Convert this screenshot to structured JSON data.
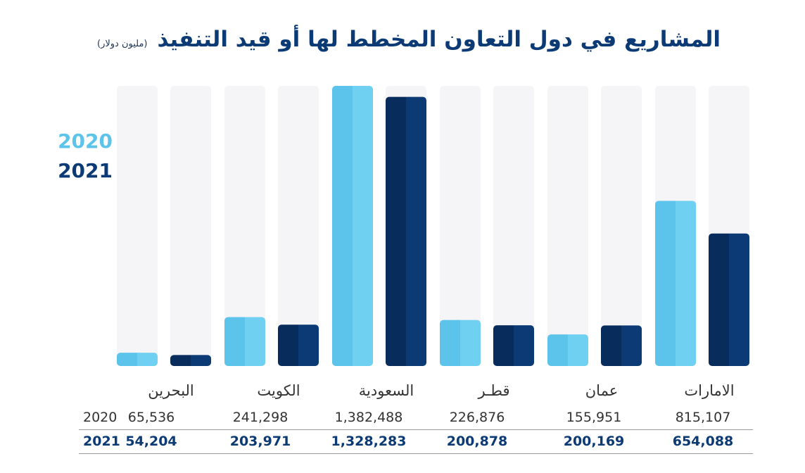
{
  "title": "المشاريع في دول التعاون المخطط لها أو قيد التنفيذ",
  "subtitle": "(مليون دولار)",
  "legend": [
    "2020",
    "2021"
  ],
  "colors": {
    "series_2020": "#6fd0f2",
    "series_2021": "#0b3a74",
    "track": "#f5f5f7"
  },
  "chart_data": {
    "type": "bar",
    "title": "المشاريع في دول التعاون المخطط لها أو قيد التنفيذ",
    "subtitle": "(مليون دولار)",
    "categories": [
      "البحرين",
      "الكويت",
      "السعودية",
      "قطـر",
      "عمان",
      "الامارات"
    ],
    "series": [
      {
        "name": "2020",
        "values": [
          65536,
          241298,
          1382488,
          226876,
          155951,
          815107
        ]
      },
      {
        "name": "2021",
        "values": [
          54204,
          203971,
          1328283,
          200878,
          200169,
          654088
        ]
      }
    ],
    "ylim": [
      0,
      1382488
    ],
    "grid": false,
    "legend_position": "left"
  },
  "table": {
    "rows": [
      {
        "label": "2020",
        "values": [
          "65,536",
          "241,298",
          "1,382,488",
          "226,876",
          "155,951",
          "815,107"
        ]
      },
      {
        "label": "2021",
        "values": [
          "54,204",
          "203,971",
          "1,328,283",
          "200,878",
          "200,169",
          "654,088"
        ]
      }
    ]
  }
}
